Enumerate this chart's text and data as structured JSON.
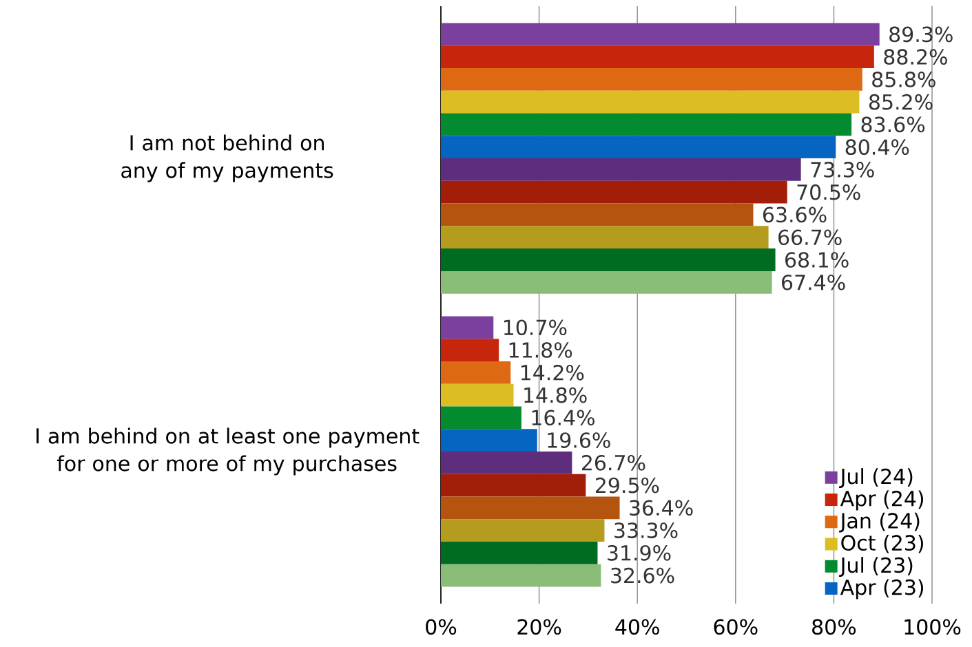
{
  "chart_data": {
    "type": "bar",
    "orientation": "horizontal",
    "categories": [
      "I am not behind on any of my payments",
      "I am behind on at least one payment for one or more of my purchases"
    ],
    "series": [
      {
        "name": "Jul (24)",
        "color": "#7b3f9e",
        "values": [
          89.3,
          10.7
        ],
        "value_labels": [
          "89.3%",
          "10.7%"
        ]
      },
      {
        "name": "Apr (24)",
        "color": "#c8260c",
        "values": [
          88.2,
          11.8
        ],
        "value_labels": [
          "88.2%",
          "11.8%"
        ]
      },
      {
        "name": "Jan (24)",
        "color": "#dd6a12",
        "values": [
          85.8,
          14.2
        ],
        "value_labels": [
          "85.8%",
          "14.2%"
        ]
      },
      {
        "name": "Oct (23)",
        "color": "#dcbd22",
        "values": [
          85.2,
          14.8
        ],
        "value_labels": [
          "85.2%",
          "14.8%"
        ]
      },
      {
        "name": "Jul (23)",
        "color": "#048a2f",
        "values": [
          83.6,
          16.4
        ],
        "value_labels": [
          "83.6%",
          "16.4%"
        ]
      },
      {
        "name": "Apr (23)",
        "color": "#0565c1",
        "values": [
          80.4,
          19.6
        ],
        "value_labels": [
          "80.4%",
          "19.6%"
        ]
      },
      {
        "color": "#5f2d7e",
        "values": [
          73.3,
          26.7
        ],
        "value_labels": [
          "73.3%",
          "26.7%"
        ]
      },
      {
        "color": "#a31e08",
        "values": [
          70.5,
          29.5
        ],
        "value_labels": [
          "70.5%",
          "29.5%"
        ]
      },
      {
        "color": "#b5540e",
        "values": [
          63.6,
          36.4
        ],
        "value_labels": [
          "63.6%",
          "36.4%"
        ]
      },
      {
        "color": "#b59c1e",
        "values": [
          66.7,
          33.3
        ],
        "value_labels": [
          "66.7%",
          "33.3%"
        ]
      },
      {
        "color": "#006c22",
        "values": [
          68.1,
          31.9
        ],
        "value_labels": [
          "68.1%",
          "31.9%"
        ]
      },
      {
        "color": "#8abd78",
        "values": [
          67.4,
          32.6
        ],
        "value_labels": [
          "67.4%",
          "32.6%"
        ]
      }
    ],
    "xlim": [
      0,
      100
    ],
    "xticks": [
      {
        "value": 0,
        "label": "0%"
      },
      {
        "value": 20,
        "label": "20%"
      },
      {
        "value": 40,
        "label": "40%"
      },
      {
        "value": 60,
        "label": "60%"
      },
      {
        "value": 80,
        "label": "80%"
      },
      {
        "value": 100,
        "label": "100%"
      }
    ],
    "grid": "x",
    "legend": "bottom right"
  }
}
